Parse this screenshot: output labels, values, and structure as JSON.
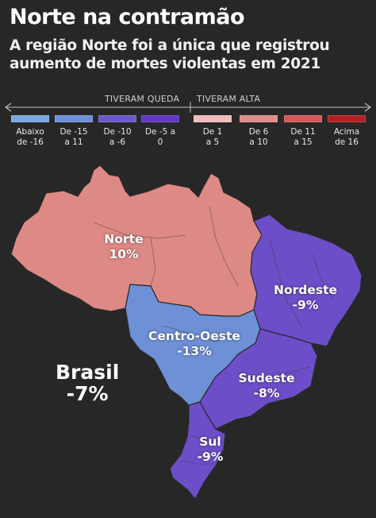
{
  "title": "Norte na contramão",
  "subtitle": "A região Norte foi a única que registrou aumento de mortes violentas em 2021",
  "legend": {
    "fell_label": "TIVERAM QUEDA",
    "rose_label": "TIVERAM ALTA",
    "items": [
      {
        "line1": "Abaixo",
        "line2": "de -16",
        "color": "#7aa7e0"
      },
      {
        "line1": "De -15",
        "line2": "a 11",
        "color": "#6e8fd8"
      },
      {
        "line1": "De -10",
        "line2": "a -6",
        "color": "#6d58c9"
      },
      {
        "line1": "De -5 a 0",
        "line2": "",
        "color": "#6437c2"
      },
      {
        "line1": "De 1",
        "line2": "a 5",
        "color": "#f0bcbc"
      },
      {
        "line1": "De 6",
        "line2": "a 10",
        "color": "#dd8d88"
      },
      {
        "line1": "De 11",
        "line2": "a 15",
        "color": "#d25a5a"
      },
      {
        "line1": "Acima",
        "line2": "de 16",
        "color": "#b22222"
      }
    ]
  },
  "regions": [
    {
      "name": "Norte",
      "value": "10%",
      "color": "#dd8a86"
    },
    {
      "name": "Nordeste",
      "value": "-9%",
      "color": "#6c4ec8"
    },
    {
      "name": "Centro-Oeste",
      "value": "-13%",
      "color": "#6e90d6"
    },
    {
      "name": "Sudeste",
      "value": "-8%",
      "color": "#6c4ec8"
    },
    {
      "name": "Sul",
      "value": "-9%",
      "color": "#6c4ec8"
    }
  ],
  "brasil": {
    "label": "Brasil",
    "value": "-7%"
  }
}
